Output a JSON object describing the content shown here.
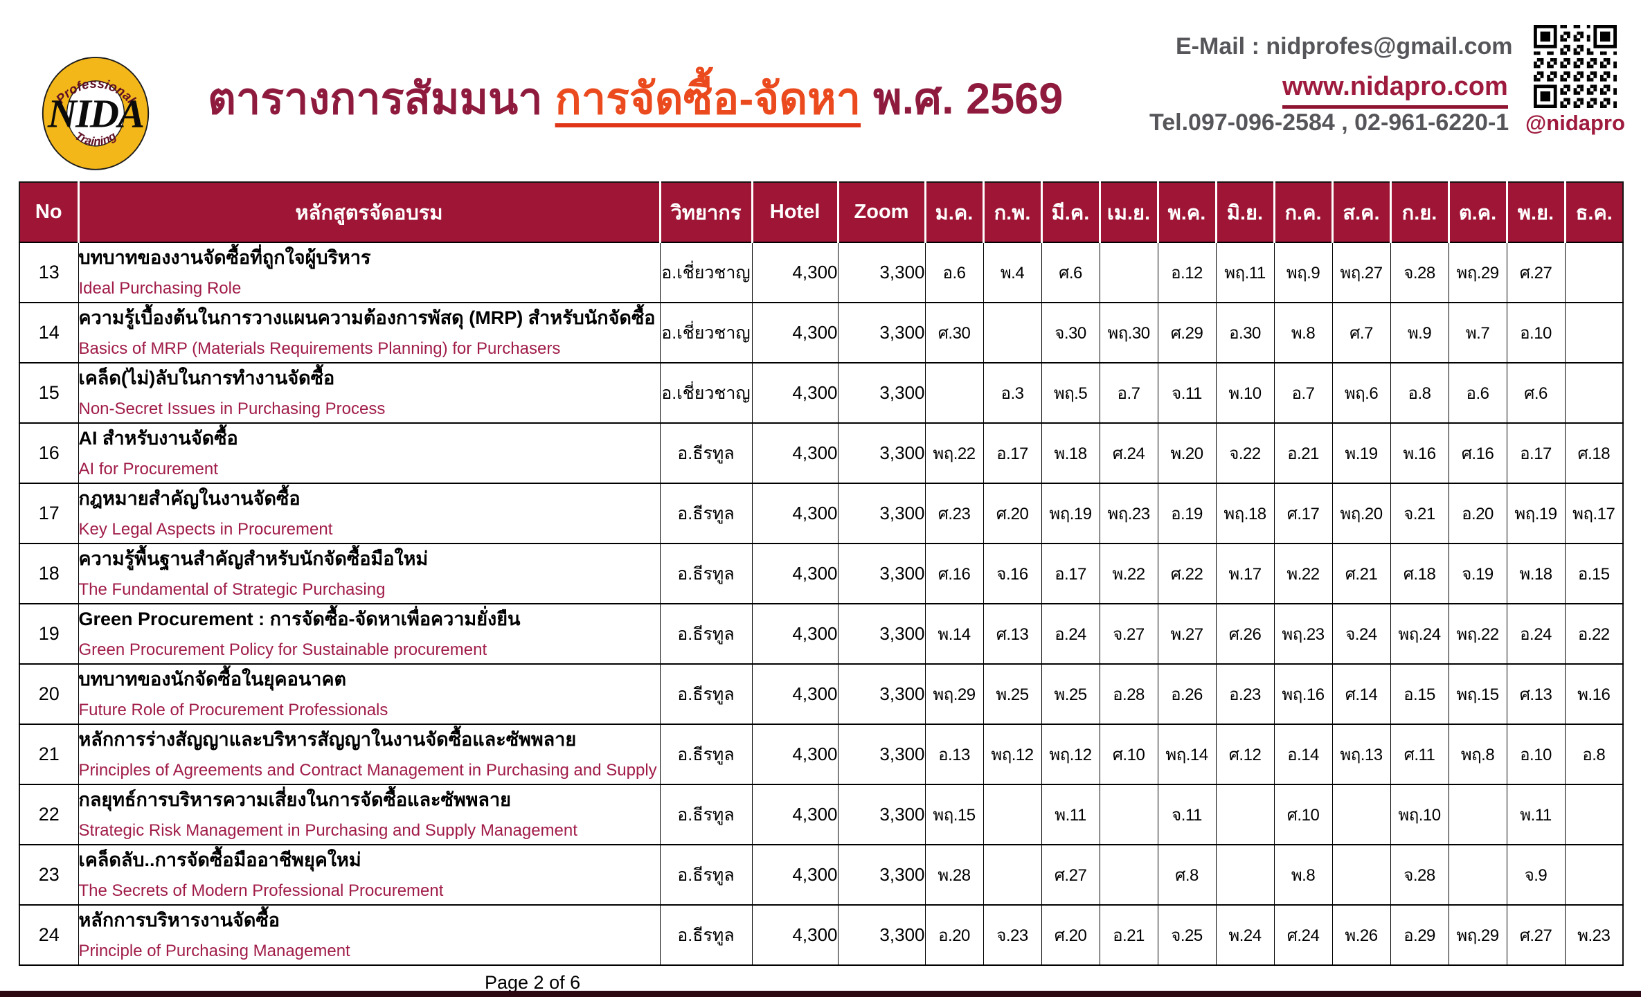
{
  "brand": {
    "logo_text": "NIDA",
    "logo_top": "Professional",
    "logo_bottom": "Training"
  },
  "header": {
    "title_prefix": "ตารางการสัมมนา",
    "title_highlight": "การจัดซื้อ-จัดหา",
    "title_suffix": "พ.ศ. 2569",
    "email": "E-Mail : nidprofes@gmail.com",
    "website": "www.nidapro.com",
    "tel": "Tel.097-096-2584 , 02-961-6220-1",
    "qr_label": "@nidapro"
  },
  "colors": {
    "header_maroon": "#9e1535",
    "pink": "#f8c3d3",
    "title_maroon": "#8e1a3e",
    "title_orange": "#ea4a1d",
    "english_crimson": "#a01c47",
    "logo_yellow": "#f4b71a"
  },
  "table": {
    "columns": [
      "No",
      "หลักสูตรจัดอบรม",
      "วิทยากร",
      "Hotel",
      "Zoom",
      "ม.ค.",
      "ก.พ.",
      "มี.ค.",
      "เม.ย.",
      "พ.ค.",
      "มิ.ย.",
      "ก.ค.",
      "ส.ค.",
      "ก.ย.",
      "ต.ค.",
      "พ.ย.",
      "ธ.ค."
    ],
    "rows": [
      {
        "no": "13",
        "title_th": "บทบาทของงานจัดซื้อที่ถูกใจผู้บริหาร",
        "title_en": "Ideal Purchasing Role",
        "instructor": "อ.เชี่ยวชาญ",
        "hotel": "4,300",
        "zoom": "3,300",
        "months": [
          "อ.6",
          "พ.4",
          "ศ.6",
          "",
          "อ.12",
          "พฤ.11",
          "พฤ.9",
          "พฤ.27",
          "จ.28",
          "พฤ.29",
          "ศ.27",
          ""
        ]
      },
      {
        "no": "14",
        "title_th": "ความรู้เบื้องต้นในการวางแผนความต้องการพัสดุ (MRP) สำหรับนักจัดซื้อ",
        "title_en": "Basics of MRP (Materials Requirements Planning) for Purchasers",
        "instructor": "อ.เชี่ยวชาญ",
        "hotel": "4,300",
        "zoom": "3,300",
        "months": [
          "ศ.30",
          "",
          "จ.30",
          "พฤ.30",
          "ศ.29",
          "อ.30",
          "พ.8",
          "ศ.7",
          "พ.9",
          "พ.7",
          "อ.10",
          ""
        ]
      },
      {
        "no": "15",
        "title_th": "เคล็ด(ไม่)ลับในการทำงานจัดซื้อ",
        "title_en": "Non-Secret Issues in Purchasing Process",
        "instructor": "อ.เชี่ยวชาญ",
        "hotel": "4,300",
        "zoom": "3,300",
        "months": [
          "",
          "อ.3",
          "พฤ.5",
          "อ.7",
          "จ.11",
          "พ.10",
          "อ.7",
          "พฤ.6",
          "อ.8",
          "อ.6",
          "ศ.6",
          ""
        ]
      },
      {
        "no": "16",
        "title_th": "AI สำหรับงานจัดซื้อ",
        "title_en": "AI for Procurement",
        "instructor": "อ.ธีรทูล",
        "hotel": "4,300",
        "zoom": "3,300",
        "months": [
          "พฤ.22",
          "อ.17",
          "พ.18",
          "ศ.24",
          "พ.20",
          "จ.22",
          "อ.21",
          "พ.19",
          "พ.16",
          "ศ.16",
          "อ.17",
          "ศ.18"
        ]
      },
      {
        "no": "17",
        "title_th": "กฎหมายสำคัญในงานจัดซื้อ",
        "title_en": "Key Legal Aspects in Procurement",
        "instructor": "อ.ธีรทูล",
        "hotel": "4,300",
        "zoom": "3,300",
        "months": [
          "ศ.23",
          "ศ.20",
          "พฤ.19",
          "พฤ.23",
          "อ.19",
          "พฤ.18",
          "ศ.17",
          "พฤ.20",
          "จ.21",
          "อ.20",
          "พฤ.19",
          "พฤ.17"
        ]
      },
      {
        "no": "18",
        "title_th": "ความรู้พื้นฐานสำคัญสำหรับนักจัดซื้อมือใหม่",
        "title_en": "The Fundamental of Strategic Purchasing",
        "instructor": "อ.ธีรทูล",
        "hotel": "4,300",
        "zoom": "3,300",
        "months": [
          "ศ.16",
          "จ.16",
          "อ.17",
          "พ.22",
          "ศ.22",
          "พ.17",
          "พ.22",
          "ศ.21",
          "ศ.18",
          "จ.19",
          "พ.18",
          "อ.15"
        ]
      },
      {
        "no": "19",
        "title_th": "Green Procurement : การจัดซื้อ-จัดหาเพื่อความยั่งยืน",
        "title_en": "Green Procurement Policy for Sustainable procurement",
        "instructor": "อ.ธีรทูล",
        "hotel": "4,300",
        "zoom": "3,300",
        "months": [
          "พ.14",
          "ศ.13",
          "อ.24",
          "จ.27",
          "พ.27",
          "ศ.26",
          "พฤ.23",
          "จ.24",
          "พฤ.24",
          "พฤ.22",
          "อ.24",
          "อ.22"
        ]
      },
      {
        "no": "20",
        "title_th": "บทบาทของนักจัดซื้อในยุคอนาคต",
        "title_en": "Future Role of Procurement Professionals",
        "instructor": "อ.ธีรทูล",
        "hotel": "4,300",
        "zoom": "3,300",
        "months": [
          "พฤ.29",
          "พ.25",
          "พ.25",
          "อ.28",
          "อ.26",
          "อ.23",
          "พฤ.16",
          "ศ.14",
          "อ.15",
          "พฤ.15",
          "ศ.13",
          "พ.16"
        ]
      },
      {
        "no": "21",
        "title_th": "หลักการร่างสัญญาและบริหารสัญญาในงานจัดซื้อและซัพพลาย",
        "title_en": "Principles of Agreements and Contract Management in Purchasing and Supply",
        "instructor": "อ.ธีรทูล",
        "hotel": "4,300",
        "zoom": "3,300",
        "months": [
          "อ.13",
          "พฤ.12",
          "พฤ.12",
          "ศ.10",
          "พฤ.14",
          "ศ.12",
          "อ.14",
          "พฤ.13",
          "ศ.11",
          "พฤ.8",
          "อ.10",
          "อ.8"
        ]
      },
      {
        "no": "22",
        "title_th": "กลยุทธ์การบริหารความเสี่ยงในการจัดซื้อและซัพพลาย",
        "title_en": "Strategic Risk Management in Purchasing and Supply Management",
        "instructor": "อ.ธีรทูล",
        "hotel": "4,300",
        "zoom": "3,300",
        "months": [
          "พฤ.15",
          "",
          "พ.11",
          "",
          "จ.11",
          "",
          "ศ.10",
          "",
          "พฤ.10",
          "",
          "พ.11",
          ""
        ]
      },
      {
        "no": "23",
        "title_th": "เคล็ดลับ..การจัดซื้อมืออาชีพยุคใหม่",
        "title_en": "The Secrets of Modern Professional Procurement",
        "instructor": "อ.ธีรทูล",
        "hotel": "4,300",
        "zoom": "3,300",
        "months": [
          "พ.28",
          "",
          "ศ.27",
          "",
          "ศ.8",
          "",
          "พ.8",
          "",
          "จ.28",
          "",
          "จ.9",
          ""
        ]
      },
      {
        "no": "24",
        "title_th": "หลักการบริหารงานจัดซื้อ",
        "title_en": "Principle of Purchasing Management",
        "instructor": "อ.ธีรทูล",
        "hotel": "4,300",
        "zoom": "3,300",
        "months": [
          "อ.20",
          "จ.23",
          "ศ.20",
          "อ.21",
          "จ.25",
          "พ.24",
          "ศ.24",
          "พ.26",
          "อ.29",
          "พฤ.29",
          "ศ.27",
          "พ.23"
        ]
      }
    ]
  },
  "footer": {
    "page": "Page 2 of 6"
  }
}
